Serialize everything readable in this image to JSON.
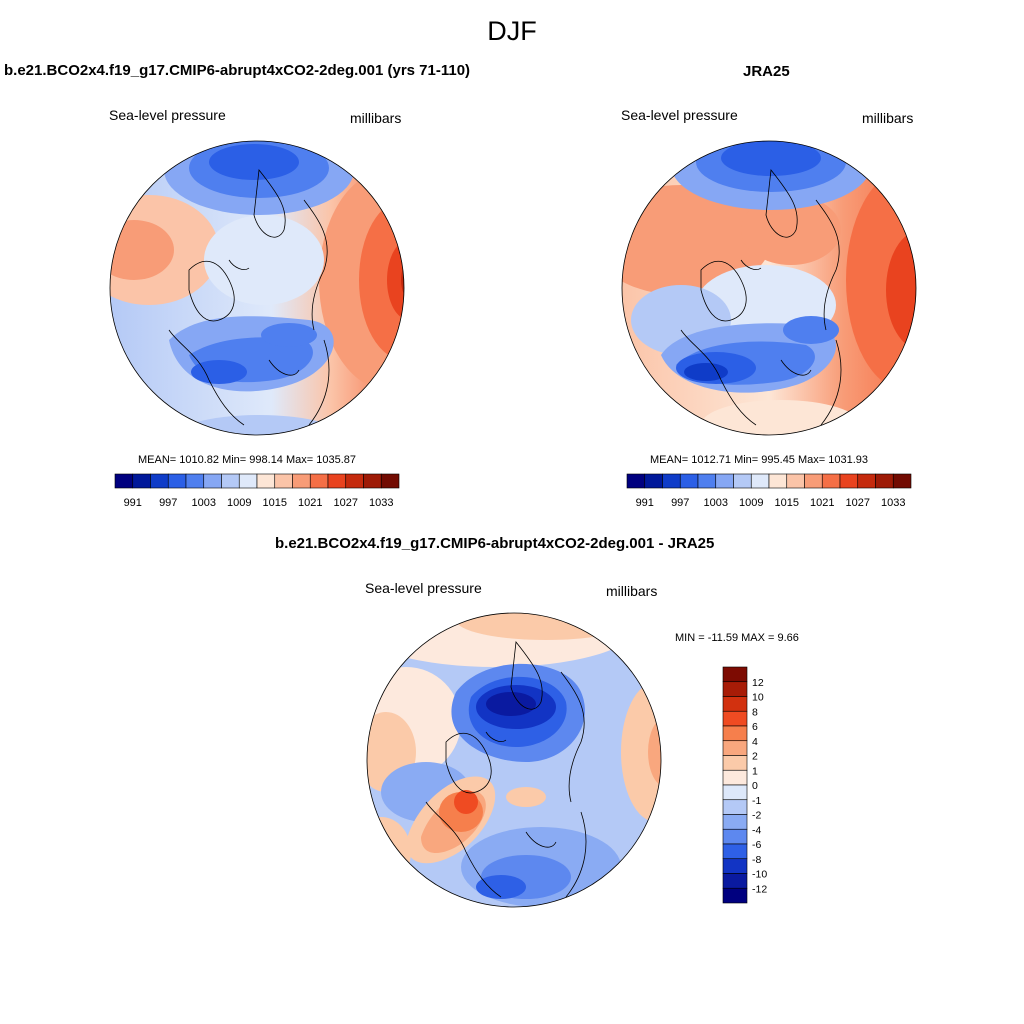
{
  "figure": {
    "season": "DJF"
  },
  "panels": [
    {
      "title": "b.e21.BCO2x4.f19_g17.CMIP6-abrupt4xCO2-2deg.001 (yrs 71-110)",
      "left_label": "Sea-level pressure",
      "right_label": "millibars",
      "stats": "MEAN= 1010.82  Min= 998.14  Max= 1035.87"
    },
    {
      "title": "JRA25",
      "left_label": "Sea-level pressure",
      "right_label": "millibars",
      "stats": "MEAN= 1012.71  Min= 995.45  Max= 1031.93"
    },
    {
      "title": "b.e21.BCO2x4.f19_g17.CMIP6-abrupt4xCO2-2deg.001 - JRA25",
      "left_label": "Sea-level pressure",
      "right_label": "millibars",
      "stats": "MIN = -11.59 MAX =   9.66"
    }
  ],
  "colorbars": {
    "absolute": {
      "colors": [
        "#00007f",
        "#00189a",
        "#0f3cc8",
        "#2b5fe6",
        "#4f7fef",
        "#86a7f4",
        "#b4c9f6",
        "#dfe9fa",
        "#fde6d6",
        "#fbc4a8",
        "#f89c77",
        "#f56f46",
        "#e9431f",
        "#c52a0d",
        "#9e1a06",
        "#720b02"
      ],
      "ticks": [
        "991",
        "997",
        "1003",
        "1009",
        "1015",
        "1021",
        "1027",
        "1033"
      ],
      "tick_at_boundary": [
        1,
        3,
        5,
        7,
        9,
        11,
        13,
        15
      ]
    },
    "difference": {
      "colors_top_to_bottom": [
        "#7d0b02",
        "#a81c07",
        "#d2310f",
        "#ef4b22",
        "#f67f4c",
        "#f9a77e",
        "#fbcaa9",
        "#fde9dd",
        "#dde8fa",
        "#b4c9f6",
        "#8aabf3",
        "#5d88ef",
        "#2e60e6",
        "#1234c4",
        "#0a1aa0",
        "#00007f"
      ],
      "ticks_top_to_bottom": [
        "12",
        "10",
        "8",
        "6",
        "4",
        "2",
        "1",
        "0",
        "-1",
        "-2",
        "-4",
        "-6",
        "-8",
        "-10",
        "-12"
      ]
    }
  }
}
